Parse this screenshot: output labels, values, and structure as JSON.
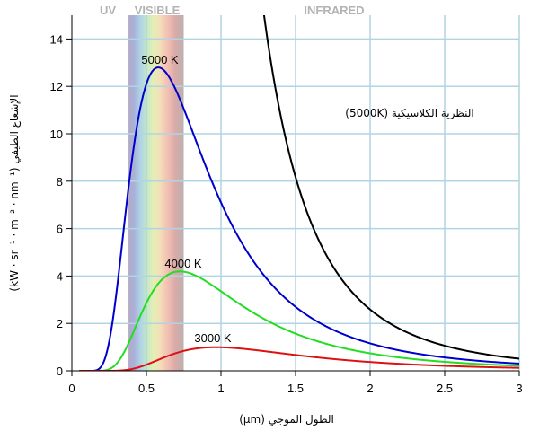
{
  "chart_data": {
    "type": "line",
    "xlabel": "الطول الموجي (μm)",
    "ylabel": "الإشعاع الطيفي (kW · sr⁻¹ · m⁻² · nm⁻¹)",
    "xlim": [
      0,
      3
    ],
    "ylim": [
      0,
      15
    ],
    "x_ticks": [
      "0",
      "0.5",
      "1",
      "1.5",
      "2",
      "2.5",
      "3"
    ],
    "y_ticks": [
      "0",
      "2",
      "4",
      "6",
      "8",
      "10",
      "12",
      "14"
    ],
    "grid": true,
    "bands": [
      {
        "label": "UV",
        "range": [
          0,
          0.38
        ]
      },
      {
        "label": "VISIBLE",
        "range": [
          0.38,
          0.75
        ]
      },
      {
        "label": "INFRARED",
        "range": [
          0.75,
          3
        ]
      }
    ],
    "series": [
      {
        "name": "5000 K",
        "color": "#0000cc",
        "temperature_K": 5000
      },
      {
        "name": "4000 K",
        "color": "#22dd22",
        "temperature_K": 4000
      },
      {
        "name": "3000 K",
        "color": "#dd1111",
        "temperature_K": 3000
      },
      {
        "name": "النظرية الكلاسيكية (5000K)",
        "color": "#000000",
        "temperature_K": 5000,
        "model": "classical"
      }
    ],
    "peaks": [
      {
        "series": "5000 K",
        "x": 0.58,
        "y": 12.7
      },
      {
        "series": "4000 K",
        "x": 0.72,
        "y": 4.2
      },
      {
        "series": "3000 K",
        "x": 0.97,
        "y": 1.0
      }
    ]
  }
}
